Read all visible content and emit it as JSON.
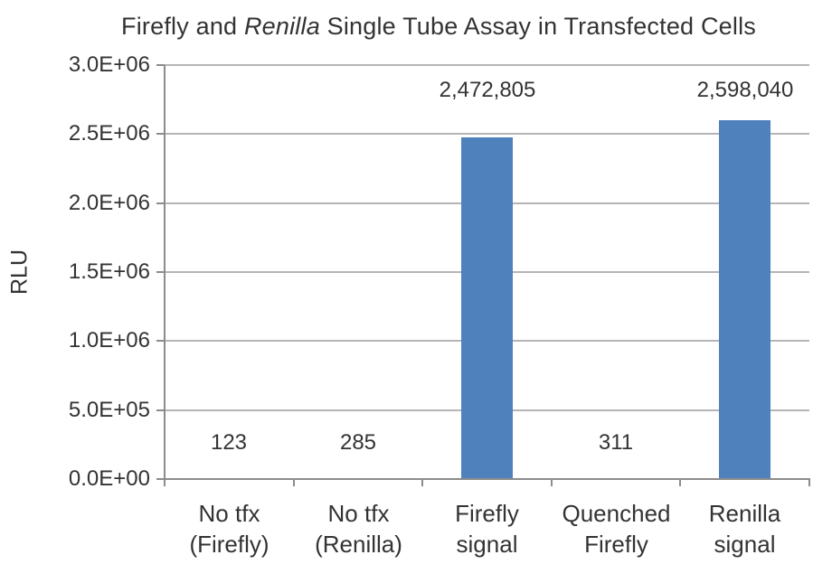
{
  "title": {
    "pre_italic": "Firefly and ",
    "italic": "Renilla",
    "post_italic": " Single Tube Assay in Transfected Cells"
  },
  "chart_data": {
    "type": "bar",
    "title": "Firefly and Renilla Single Tube Assay in Transfected Cells",
    "title_italic_word": "Renilla",
    "xlabel": "",
    "ylabel": "RLU",
    "ylim": [
      0,
      3000000
    ],
    "grid": true,
    "legend": false,
    "y_ticks": [
      {
        "label": "3.0E+06",
        "value": 3000000
      },
      {
        "label": "2.5E+06",
        "value": 2500000
      },
      {
        "label": "2.0E+06",
        "value": 2000000
      },
      {
        "label": "1.5E+06",
        "value": 1500000
      },
      {
        "label": "1.0E+06",
        "value": 1000000
      },
      {
        "label": "5.0E+05",
        "value": 500000
      },
      {
        "label": "0.0E+00",
        "value": 0
      }
    ],
    "categories": [
      "No tfx\n(Firefly)",
      "No tfx\n(Renilla)",
      "Firefly\nsignal",
      "Quenched\nFirefly",
      "Renilla\nsignal"
    ],
    "values": [
      123,
      285,
      2472805,
      311,
      2598040
    ],
    "data_labels": [
      "123",
      "285",
      "2,472,805",
      "311",
      "2,598,040"
    ],
    "bar_color": "#4f81bd",
    "gridline_color": "#b5b5b5",
    "axis_color": "#8c8c8c",
    "text_color": "#333333"
  }
}
